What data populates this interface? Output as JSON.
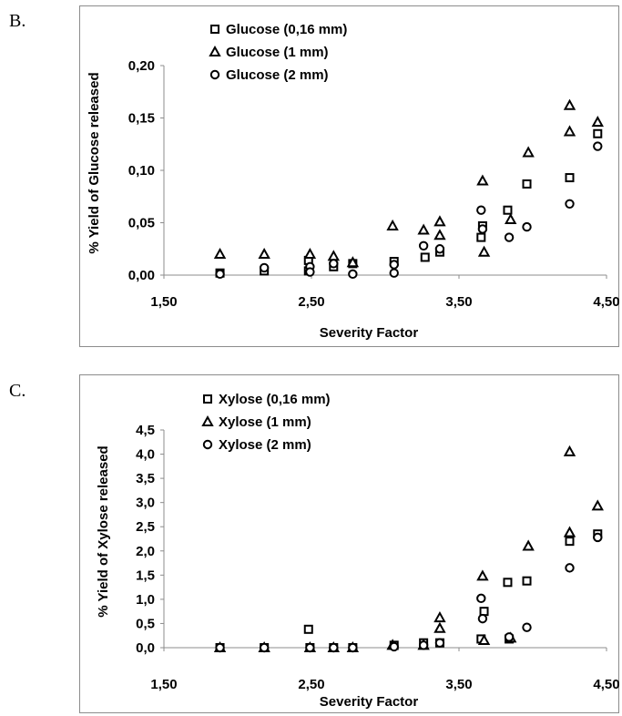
{
  "panels": {
    "b": {
      "letter": "B."
    },
    "c": {
      "letter": "C."
    }
  },
  "chart_data": [
    {
      "type": "scatter",
      "title": "",
      "xlabel": "Severity Factor",
      "ylabel": "% Yield of Glucose released",
      "xlim": [
        1.5,
        4.5
      ],
      "ylim": [
        0,
        0.2
      ],
      "x_ticks": [
        "1,50",
        "2,50",
        "3,50",
        "4,50"
      ],
      "y_ticks": [
        "0,00",
        "0,05",
        "0,10",
        "0,15",
        "0,20"
      ],
      "grid": false,
      "legend": "top-left",
      "series": [
        {
          "name": "Glucose (0,16 mm)",
          "marker": "square",
          "points": [
            [
              1.88,
              0.002
            ],
            [
              2.18,
              0.004
            ],
            [
              2.48,
              0.014
            ],
            [
              2.48,
              0.004
            ],
            [
              2.65,
              0.008
            ],
            [
              2.78,
              0.011
            ],
            [
              3.06,
              0.013
            ],
            [
              3.27,
              0.017
            ],
            [
              3.37,
              0.022
            ],
            [
              3.65,
              0.036
            ],
            [
              3.66,
              0.047
            ],
            [
              3.83,
              0.062
            ],
            [
              3.96,
              0.087
            ],
            [
              4.25,
              0.093
            ],
            [
              4.44,
              0.135
            ]
          ]
        },
        {
          "name": "Glucose (1 mm)",
          "marker": "triangle",
          "points": [
            [
              1.88,
              0.02
            ],
            [
              2.18,
              0.02
            ],
            [
              2.49,
              0.02
            ],
            [
              2.65,
              0.018
            ],
            [
              2.78,
              0.012
            ],
            [
              3.05,
              0.047
            ],
            [
              3.26,
              0.043
            ],
            [
              3.37,
              0.051
            ],
            [
              3.37,
              0.038
            ],
            [
              3.66,
              0.09
            ],
            [
              3.67,
              0.022
            ],
            [
              3.85,
              0.053
            ],
            [
              3.97,
              0.117
            ],
            [
              4.25,
              0.162
            ],
            [
              4.25,
              0.137
            ],
            [
              4.44,
              0.146
            ]
          ]
        },
        {
          "name": "Glucose (2 mm)",
          "marker": "circle",
          "points": [
            [
              1.88,
              0.001
            ],
            [
              2.18,
              0.007
            ],
            [
              2.49,
              0.008
            ],
            [
              2.49,
              0.003
            ],
            [
              2.65,
              0.011
            ],
            [
              2.78,
              0.001
            ],
            [
              3.06,
              0.01
            ],
            [
              3.06,
              0.002
            ],
            [
              3.26,
              0.028
            ],
            [
              3.37,
              0.025
            ],
            [
              3.65,
              0.062
            ],
            [
              3.66,
              0.044
            ],
            [
              3.84,
              0.036
            ],
            [
              3.96,
              0.046
            ],
            [
              4.25,
              0.068
            ],
            [
              4.44,
              0.123
            ]
          ]
        }
      ]
    },
    {
      "type": "scatter",
      "title": "",
      "xlabel": "Severity Factor",
      "ylabel": "% Yield of Xylose  released",
      "xlim": [
        1.5,
        4.5
      ],
      "ylim": [
        0,
        4.5
      ],
      "x_ticks": [
        "1,50",
        "2,50",
        "3,50",
        "4,50"
      ],
      "y_ticks": [
        "0,0",
        "0,5",
        "1,0",
        "1,5",
        "2,0",
        "2,5",
        "3,0",
        "3,5",
        "4,0",
        "4,5"
      ],
      "grid": false,
      "legend": "top-left",
      "series": [
        {
          "name": "Xylose (0,16 mm)",
          "marker": "square",
          "points": [
            [
              1.88,
              0.0
            ],
            [
              2.18,
              0.0
            ],
            [
              2.48,
              0.38
            ],
            [
              2.49,
              0.0
            ],
            [
              2.65,
              0.0
            ],
            [
              2.78,
              0.0
            ],
            [
              3.06,
              0.05
            ],
            [
              3.26,
              0.1
            ],
            [
              3.37,
              0.1
            ],
            [
              3.65,
              0.18
            ],
            [
              3.67,
              0.75
            ],
            [
              3.83,
              1.35
            ],
            [
              3.84,
              0.18
            ],
            [
              3.96,
              1.38
            ],
            [
              4.25,
              2.2
            ],
            [
              4.44,
              2.35
            ]
          ]
        },
        {
          "name": "Xylose (1 mm)",
          "marker": "triangle",
          "points": [
            [
              1.88,
              0.0
            ],
            [
              2.18,
              0.0
            ],
            [
              2.49,
              0.0
            ],
            [
              2.65,
              0.0
            ],
            [
              2.78,
              0.0
            ],
            [
              3.05,
              0.05
            ],
            [
              3.26,
              0.05
            ],
            [
              3.37,
              0.62
            ],
            [
              3.37,
              0.4
            ],
            [
              3.66,
              1.48
            ],
            [
              3.67,
              0.15
            ],
            [
              3.85,
              0.2
            ],
            [
              3.97,
              2.1
            ],
            [
              4.25,
              4.05
            ],
            [
              4.25,
              2.38
            ],
            [
              4.44,
              2.93
            ]
          ]
        },
        {
          "name": "Xylose (2 mm)",
          "marker": "circle",
          "points": [
            [
              1.88,
              0.0
            ],
            [
              2.18,
              0.0
            ],
            [
              2.49,
              0.0
            ],
            [
              2.65,
              0.0
            ],
            [
              2.78,
              0.0
            ],
            [
              3.06,
              0.02
            ],
            [
              3.26,
              0.05
            ],
            [
              3.37,
              0.1
            ],
            [
              3.65,
              1.02
            ],
            [
              3.66,
              0.6
            ],
            [
              3.84,
              0.22
            ],
            [
              3.96,
              0.42
            ],
            [
              4.25,
              1.65
            ],
            [
              4.44,
              2.28
            ]
          ]
        }
      ]
    }
  ]
}
